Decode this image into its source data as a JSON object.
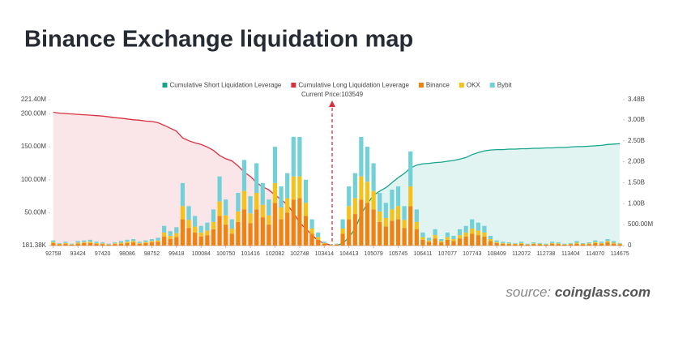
{
  "chart_data": {
    "type": "bar",
    "title": "Binance Exchange liquidation map",
    "annotation": "Current Price:103549",
    "categories": [
      "92758",
      null,
      null,
      null,
      "93424",
      null,
      null,
      null,
      "97420",
      null,
      null,
      null,
      "98086",
      null,
      null,
      null,
      "98752",
      null,
      null,
      null,
      "99418",
      null,
      null,
      null,
      "100084",
      null,
      null,
      null,
      "100750",
      null,
      null,
      null,
      "101416",
      null,
      null,
      null,
      "102082",
      null,
      null,
      null,
      "102748",
      null,
      null,
      null,
      "103414",
      null,
      null,
      null,
      "104413",
      null,
      null,
      null,
      "105079",
      null,
      null,
      null,
      "105745",
      null,
      null,
      null,
      "106411",
      null,
      null,
      null,
      "107077",
      null,
      null,
      null,
      "107743",
      null,
      null,
      null,
      "108409",
      null,
      null,
      null,
      "112072",
      null,
      null,
      null,
      "112738",
      null,
      null,
      null,
      "113404",
      null,
      null,
      null,
      "114070",
      null,
      null,
      null,
      "114675"
    ],
    "ylim": [
      181380,
      221400000
    ],
    "yticks": [
      {
        "value": 181380,
        "label": "181.38K"
      },
      {
        "value": 50000000,
        "label": "50.00M"
      },
      {
        "value": 100000000,
        "label": "100.00M"
      },
      {
        "value": 150000000,
        "label": "150.00M"
      },
      {
        "value": 200000000,
        "label": "200.00M"
      },
      {
        "value": 221400000,
        "label": "221.40M"
      }
    ],
    "y2lim": [
      0,
      3480000000
    ],
    "y2ticks": [
      0,
      {
        "value": 500000000,
        "label": "500.00M"
      },
      {
        "value": 1000000000,
        "label": "1.00B"
      },
      {
        "value": 1500000000,
        "label": "1.50B"
      },
      {
        "value": 2000000000,
        "label": "2.00B"
      },
      {
        "value": 2500000000,
        "label": "2.50B"
      },
      {
        "value": 3000000000,
        "label": "3.00B"
      },
      {
        "value": 3480000000,
        "label": "3.48B"
      }
    ],
    "grid": false,
    "legend": "top",
    "series": [
      {
        "name": "Cumulative Short Liquidation Leverage",
        "type": "line",
        "axis": "y2",
        "color": "#14a58c",
        "values": [
          null,
          null,
          null,
          null,
          null,
          null,
          null,
          null,
          null,
          null,
          null,
          null,
          null,
          null,
          null,
          null,
          null,
          null,
          null,
          null,
          null,
          null,
          null,
          null,
          null,
          null,
          null,
          null,
          null,
          null,
          null,
          null,
          null,
          null,
          null,
          null,
          null,
          null,
          null,
          null,
          null,
          null,
          null,
          null,
          null,
          null,
          10000000.0,
          50000000.0,
          200000000.0,
          400000000.0,
          750000000.0,
          1000000000.0,
          1200000000.0,
          1300000000.0,
          1380000000.0,
          1500000000.0,
          1620000000.0,
          1720000000.0,
          1850000000.0,
          1920000000.0,
          1950000000.0,
          1960000000.0,
          1980000000.0,
          1990000000.0,
          2010000000.0,
          2030000000.0,
          2060000000.0,
          2100000000.0,
          2170000000.0,
          2220000000.0,
          2260000000.0,
          2280000000.0,
          2290000000.0,
          2290000000.0,
          2300000000.0,
          2300000000.0,
          2310000000.0,
          2310000000.0,
          2320000000.0,
          2320000000.0,
          2330000000.0,
          2330000000.0,
          2340000000.0,
          2340000000.0,
          2350000000.0,
          2360000000.0,
          2360000000.0,
          2370000000.0,
          2380000000.0,
          2390000000.0,
          2410000000.0,
          2420000000.0,
          2430000000.0
        ]
      },
      {
        "name": "Cumulative Long Liquidation Leverage",
        "type": "line",
        "axis": "y2",
        "color": "#d93040",
        "values": [
          3180000000.0,
          3160000000.0,
          3150000000.0,
          3140000000.0,
          3130000000.0,
          3120000000.0,
          3110000000.0,
          3100000000.0,
          3090000000.0,
          3070000000.0,
          3050000000.0,
          3040000000.0,
          3020000000.0,
          3000000000.0,
          2990000000.0,
          2970000000.0,
          2960000000.0,
          2930000000.0,
          2870000000.0,
          2800000000.0,
          2730000000.0,
          2570000000.0,
          2500000000.0,
          2450000000.0,
          2410000000.0,
          2350000000.0,
          2270000000.0,
          2150000000.0,
          2070000000.0,
          2020000000.0,
          1900000000.0,
          1750000000.0,
          1650000000.0,
          1500000000.0,
          1400000000.0,
          1330000000.0,
          1200000000.0,
          1100000000.0,
          970000000.0,
          780000000.0,
          550000000.0,
          400000000.0,
          250000000.0,
          120000000.0,
          50000000.0,
          20000000.0,
          null,
          null,
          null,
          null,
          null,
          null,
          null,
          null,
          null,
          null,
          null,
          null,
          null,
          null,
          null,
          null,
          null,
          null,
          null,
          null,
          null,
          null,
          null,
          null,
          null,
          null,
          null,
          null,
          null,
          null,
          null,
          null,
          null,
          null,
          null,
          null,
          null,
          null,
          null,
          null,
          null,
          null,
          null,
          null,
          null,
          null,
          null
        ]
      },
      {
        "name": "Binance",
        "type": "bar",
        "color": "#f0820f",
        "values": [
          4000000.0,
          2000000.0,
          3000000.0,
          1500000.0,
          3000000.0,
          4000000.0,
          4000000.0,
          3000000.0,
          2500000.0,
          1500000.0,
          2500000.0,
          3000000.0,
          4000000.0,
          5000000.0,
          3000000.0,
          4000000.0,
          5000000.0,
          6000000.0,
          14000000.0,
          10000000.0,
          13000000.0,
          40000000.0,
          27000000.0,
          20000000.0,
          14000000.0,
          16000000.0,
          25000000.0,
          45000000.0,
          32000000.0,
          18000000.0,
          36000000.0,
          55000000.0,
          34000000.0,
          55000000.0,
          43000000.0,
          32000000.0,
          65000000.0,
          40000000.0,
          50000000.0,
          70000000.0,
          72000000.0,
          45000000.0,
          18000000.0,
          9000000.0,
          3000000.0,
          1000000.0,
          1500000.0,
          18000000.0,
          40000000.0,
          48000000.0,
          70000000.0,
          65000000.0,
          55000000.0,
          36000000.0,
          29000000.0,
          38000000.0,
          40000000.0,
          27000000.0,
          60000000.0,
          25000000.0,
          9000000.0,
          6000000.0,
          11000000.0,
          5000000.0,
          9000000.0,
          7000000.0,
          11000000.0,
          14000000.0,
          18000000.0,
          16000000.0,
          14000000.0,
          7000000.0,
          4000000.0,
          3000000.0,
          2500000.0,
          2000000.0,
          3000000.0,
          1500000.0,
          2500000.0,
          2000000.0,
          1500000.0,
          3000000.0,
          2500000.0,
          1500000.0,
          2000000.0,
          3000000.0,
          2000000.0,
          2500000.0,
          4000000.0,
          3000000.0,
          5000000.0,
          3000000.0,
          2000000.0
        ]
      },
      {
        "name": "OKX",
        "type": "bar",
        "color": "#f5c21a",
        "values": [
          1500000.0,
          1000000.0,
          1000000.0,
          500000.0,
          1500000.0,
          1500000.0,
          2000000.0,
          1000000.0,
          1000000.0,
          500000.0,
          1000000.0,
          1500000.0,
          2000000.0,
          2000000.0,
          1000000.0,
          1500000.0,
          2000000.0,
          2000000.0,
          6000000.0,
          5000000.0,
          6000000.0,
          20000000.0,
          12000000.0,
          9000000.0,
          6000000.0,
          7000000.0,
          11000000.0,
          22000000.0,
          14000000.0,
          8000000.0,
          16000000.0,
          28000000.0,
          15000000.0,
          25000000.0,
          19000000.0,
          14000000.0,
          30000000.0,
          18000000.0,
          22000000.0,
          35000000.0,
          33000000.0,
          20000000.0,
          8000000.0,
          4000000.0,
          1000000.0,
          500000.0,
          500000.0,
          8000000.0,
          20000000.0,
          24000000.0,
          35000000.0,
          32000000.0,
          28000000.0,
          16000000.0,
          13000000.0,
          17000000.0,
          20000000.0,
          12000000.0,
          30000000.0,
          11000000.0,
          4000000.0,
          2000000.0,
          5000000.0,
          2000000.0,
          4000000.0,
          3000000.0,
          5000000.0,
          6000000.0,
          8000000.0,
          7000000.0,
          6000000.0,
          3000000.0,
          1500000.0,
          1000000.0,
          1000000.0,
          1000000.0,
          1000000.0,
          500000.0,
          1000000.0,
          1000000.0,
          500000.0,
          1000000.0,
          1000000.0,
          500000.0,
          1000000.0,
          1500000.0,
          1000000.0,
          1000000.0,
          1500000.0,
          1000000.0,
          2000000.0,
          1500000.0,
          1000000.0
        ]
      },
      {
        "name": "Bybit",
        "type": "bar",
        "color": "#72d0d6",
        "values": [
          2500000.0,
          1000000.0,
          2000000.0,
          1000000.0,
          2500000.0,
          2500000.0,
          3000000.0,
          2000000.0,
          1500000.0,
          1000000.0,
          1500000.0,
          2500000.0,
          3000000.0,
          3000000.0,
          2000000.0,
          2500000.0,
          3000000.0,
          4000000.0,
          10000000.0,
          7000000.0,
          9000000.0,
          35000000.0,
          21000000.0,
          16000000.0,
          10000000.0,
          12000000.0,
          19000000.0,
          38000000.0,
          24000000.0,
          14000000.0,
          28000000.0,
          47000000.0,
          26000000.0,
          45000000.0,
          33000000.0,
          24000000.0,
          55000000.0,
          32000000.0,
          38000000.0,
          60000000.0,
          60000000.0,
          35000000.0,
          14000000.0,
          7000000.0,
          2000000.0,
          500000.0,
          1000000.0,
          14000000.0,
          30000000.0,
          38000000.0,
          60000000.0,
          53000000.0,
          42000000.0,
          28000000.0,
          23000000.0,
          30000000.0,
          30000000.0,
          21000000.0,
          53000000.0,
          19000000.0,
          7000000.0,
          4000000.0,
          9000000.0,
          3000000.0,
          7000000.0,
          5000000.0,
          9000000.0,
          10000000.0,
          14000000.0,
          12000000.0,
          10000000.0,
          5000000.0,
          2500000.0,
          2000000.0,
          1500000.0,
          1000000.0,
          2000000.0,
          1000000.0,
          1500000.0,
          1000000.0,
          1000000.0,
          2000000.0,
          1500000.0,
          1000000.0,
          1000000.0,
          2500000.0,
          1000000.0,
          1500000.0,
          2500000.0,
          2000000.0,
          3000000.0,
          2500000.0,
          1000000.0
        ]
      }
    ]
  },
  "source": {
    "prefix": "source:",
    "site": "coinglass.com"
  }
}
